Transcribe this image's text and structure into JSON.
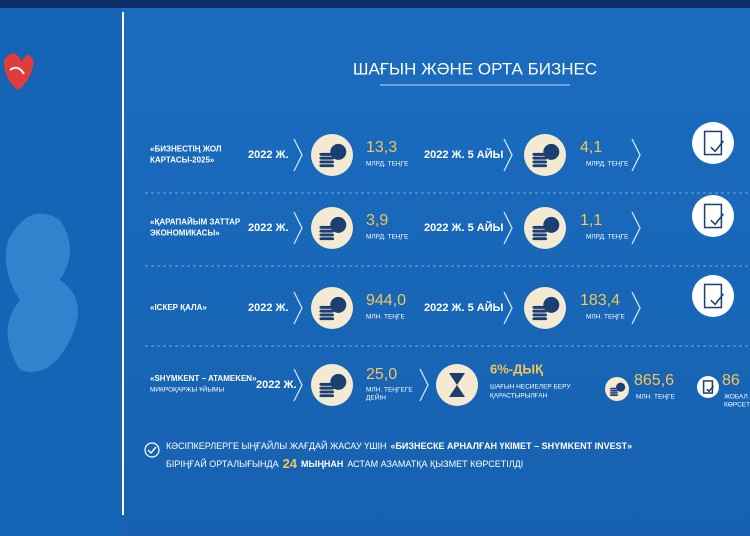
{
  "title": "ШАҒЫН ЖӘНЕ ОРТА БИЗНЕС",
  "rows": [
    {
      "label": [
        "«БИЗНЕСТІҢ ЖОЛ",
        "КАРТАСЫ-2025»"
      ],
      "year": "2022 Ж.",
      "amount1": "13,3",
      "unit1": "МЛРД. ТЕҢГЕ",
      "period": "2022 Ж. 5 АЙЫ",
      "amount2": "4,1",
      "unit2": "МЛРД. ТЕҢГЕ"
    },
    {
      "label": [
        "«ҚАРАПАЙЫМ ЗАТТАР",
        "ЭКОНОМИКАСЫ»"
      ],
      "year": "2022 Ж.",
      "amount1": "3,9",
      "unit1": "МЛРД. ТЕҢГЕ",
      "period": "2022 Ж. 5 АЙЫ",
      "amount2": "1,1",
      "unit2": "МЛРД. ТЕҢГЕ"
    },
    {
      "label": [
        "«ІСКЕР ҚАЛА»"
      ],
      "year": "2022 Ж.",
      "amount1": "944,0",
      "unit1": "МЛН. ТЕҢГЕ",
      "period": "2022 Ж. 5 АЙЫ",
      "amount2": "183,4",
      "unit2": "МЛН. ТЕҢГЕ"
    }
  ],
  "last_row": {
    "label": [
      "«SHYMKENT – ATAMEKEN»",
      "МИКРОҚАРЖЫ ҰЙЫМЫ"
    ],
    "year": "2022 Ж.",
    "amount": "25,0",
    "unit": [
      "МЛН. ТЕҢГЕГЕ",
      "ДЕЙІН"
    ],
    "rate": "6%-ДЫҚ",
    "rate_note": [
      "ШАҒЫН НЕСИЕЛЕР БЕРУ",
      "ҚАРАСТЫРЫЛҒАН"
    ],
    "total": "865,6",
    "total_unit": "МЛН. ТЕҢГЕ",
    "projects": "86",
    "projects_note": [
      "ЖОБАЛ",
      "КӨРСЕТ"
    ]
  },
  "footer": {
    "line1": [
      "КӘСІПКЕРЛЕРГЕ ЫҢҒАЙЛЫ ЖАҒДАЙ ЖАСАУ ҮШІН",
      "«БИЗНЕСКЕ АРНАЛҒАН ҮКІМЕТ – SHYMKENT INVEST»"
    ],
    "line2": [
      "БІРІҢҒАЙ ОРТАЛЫҒЫНДА",
      "24",
      "МЫҢНАН",
      "АСТАМ АЗАМАТҚА ҚЫЗМЕТ КӨРСЕТІЛДІ"
    ]
  }
}
